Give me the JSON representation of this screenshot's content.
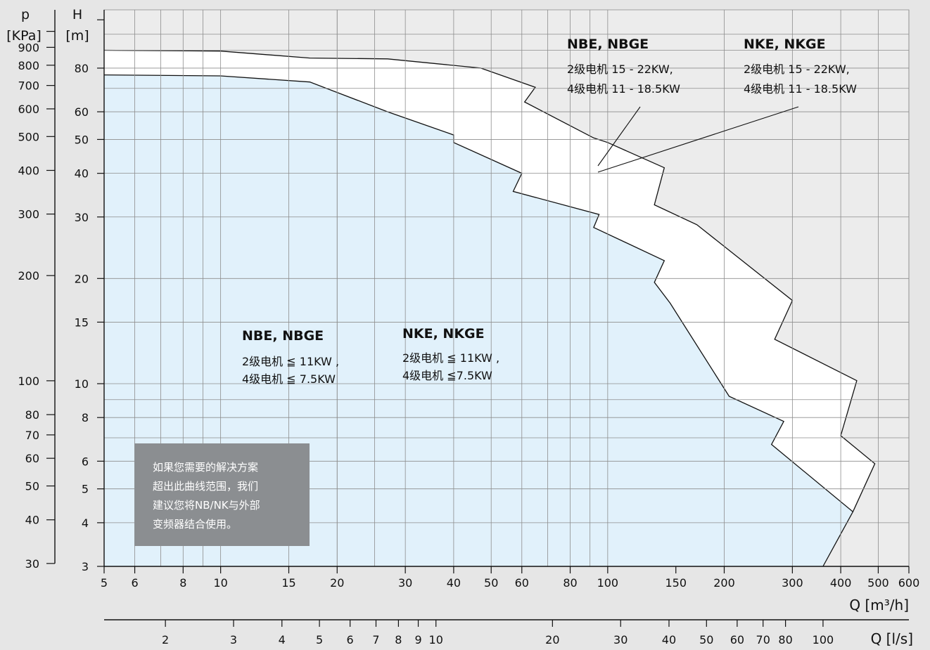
{
  "chart_data": {
    "type": "area",
    "x_scale": "log",
    "y_scale": "log",
    "xlim": [
      5,
      600
    ],
    "ylim": [
      3,
      110
    ],
    "grid": true,
    "y_axis": {
      "label_top": "H",
      "label_unit": "[m]",
      "ticks": [
        3,
        4,
        5,
        6,
        8,
        10,
        15,
        20,
        30,
        40,
        50,
        60,
        80
      ],
      "tick_labels": [
        "3",
        "4",
        "5",
        "6",
        "8",
        "10",
        "15",
        "20",
        "30",
        "40",
        "50",
        "60",
        "80"
      ]
    },
    "p_axis": {
      "label_top": "p",
      "label_unit": "[KPa]",
      "ticks": [
        30,
        40,
        50,
        60,
        70,
        80,
        100,
        200,
        300,
        400,
        500,
        600,
        700,
        800,
        900
      ],
      "tick_labels": [
        "30",
        "40",
        "50",
        "60",
        "70",
        "80",
        "100",
        "200",
        "300",
        "400",
        "500",
        "600",
        "700",
        "800",
        "900"
      ]
    },
    "x_axis": {
      "label": "Q [m³/h]",
      "ticks": [
        5,
        6,
        8,
        10,
        15,
        20,
        30,
        40,
        50,
        60,
        80,
        100,
        150,
        200,
        300,
        400,
        500,
        600
      ],
      "tick_labels": [
        "5",
        "6",
        "8",
        "10",
        "15",
        "20",
        "30",
        "40",
        "50",
        "60",
        "80",
        "100",
        "150",
        "200",
        "300",
        "400",
        "500",
        "600"
      ]
    },
    "x2_axis": {
      "label": "Q [l/s]",
      "ticks": [
        2,
        3,
        4,
        5,
        6,
        7,
        8,
        9,
        10,
        20,
        30,
        40,
        50,
        60,
        70,
        80,
        100
      ],
      "tick_labels": [
        "2",
        "3",
        "4",
        "5",
        "6",
        "7",
        "8",
        "9",
        "10",
        "20",
        "30",
        "40",
        "50",
        "60",
        "70",
        "80",
        "100"
      ]
    },
    "series": [
      {
        "fill": "#e1f1fb",
        "points": [
          [
            5,
            76.5
          ],
          [
            10,
            76
          ],
          [
            17,
            73
          ],
          [
            27,
            60
          ],
          [
            40,
            51.5
          ],
          [
            40,
            49
          ],
          [
            60,
            40
          ],
          [
            57,
            35.5
          ],
          [
            95,
            30.5
          ],
          [
            92,
            28
          ],
          [
            140,
            22.5
          ],
          [
            132,
            19.5
          ],
          [
            145,
            17
          ],
          [
            206,
            9.2
          ],
          [
            285,
            7.8
          ],
          [
            265,
            6.7
          ],
          [
            430,
            4.3
          ],
          [
            360,
            3
          ]
        ]
      },
      {
        "fill": "#ffffff",
        "points": [
          [
            5,
            90
          ],
          [
            10,
            89.5
          ],
          [
            17,
            85.5
          ],
          [
            27,
            85
          ],
          [
            47,
            80
          ],
          [
            65,
            70.5
          ],
          [
            61,
            64
          ],
          [
            92,
            50.5
          ],
          [
            100,
            49
          ],
          [
            140,
            41.5
          ],
          [
            132,
            32.5
          ],
          [
            170,
            28.5
          ],
          [
            300,
            17.3
          ],
          [
            270,
            13.4
          ],
          [
            440,
            10.2
          ],
          [
            400,
            7.1
          ],
          [
            490,
            5.9
          ],
          [
            430,
            4.3
          ]
        ]
      }
    ],
    "annotations": {
      "upper_left": {
        "title": "NBE, NBGE",
        "line1": "2级电机 15 - 22KW,",
        "line2": "4级电机 11 - 18.5KW"
      },
      "upper_right": {
        "title": "NKE, NKGE",
        "line1": "2级电机 15 - 22KW,",
        "line2": "4级电机 11 - 18.5KW"
      },
      "lower_left": {
        "title": "NBE, NBGE",
        "line1": "2级电机 ≦ 11KW ,",
        "line2": "4级电机 ≦ 7.5KW"
      },
      "lower_right": {
        "title": "NKE, NKGE",
        "line1": "2级电机 ≦ 11KW ,",
        "line2": "4级电机 ≦7.5KW"
      }
    },
    "note": {
      "line1": "如果您需要的解决方案",
      "line2": "超出此曲线范围，我们",
      "line3": "建议您将NB/NK与外部",
      "line4": "变频器结合使用。",
      "bg": "#8b8e91"
    }
  }
}
